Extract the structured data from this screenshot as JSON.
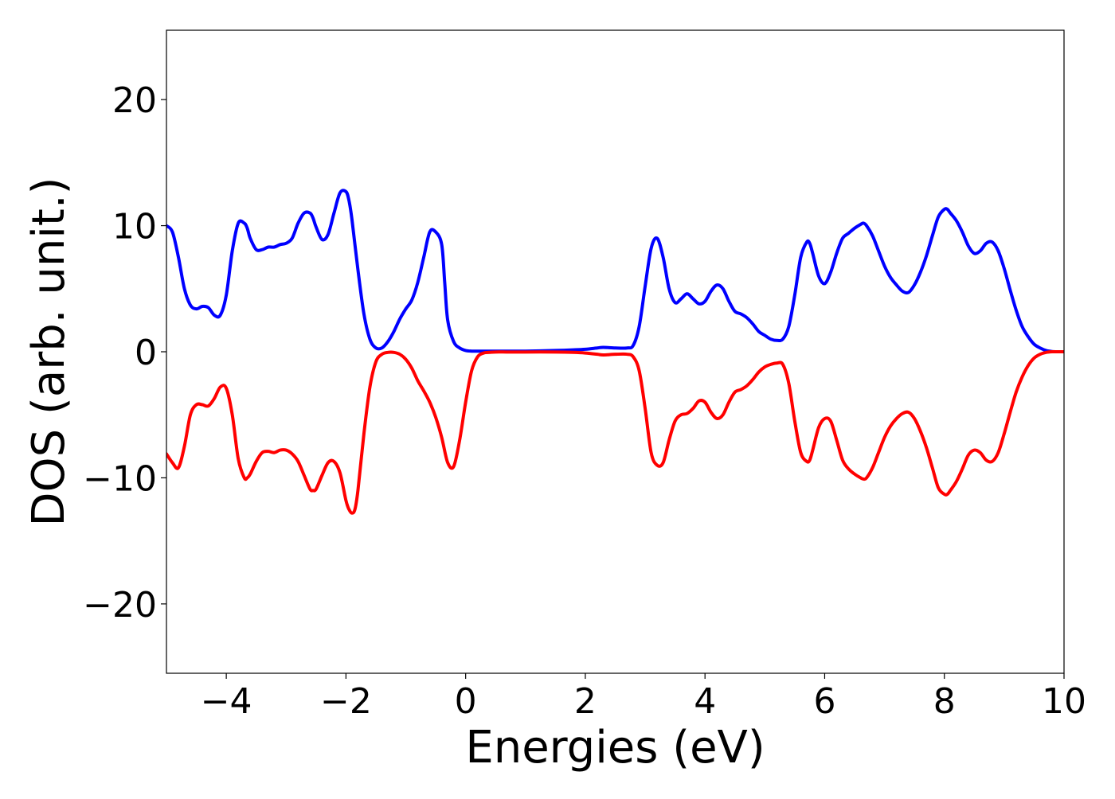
{
  "chart_data": {
    "type": "line",
    "title": "",
    "xlabel": "Energies (eV)",
    "ylabel": "DOS (arb. unit.)",
    "xlim": [
      -5,
      10
    ],
    "ylim": [
      -25.5,
      25.5
    ],
    "grid": false,
    "legend": "none",
    "x_ticks": [
      {
        "value": -4,
        "label": "−4"
      },
      {
        "value": -2,
        "label": "−2"
      },
      {
        "value": 0,
        "label": "0"
      },
      {
        "value": 2,
        "label": "2"
      },
      {
        "value": 4,
        "label": "4"
      },
      {
        "value": 6,
        "label": "6"
      },
      {
        "value": 8,
        "label": "8"
      },
      {
        "value": 10,
        "label": "10"
      }
    ],
    "y_ticks": [
      {
        "value": 20,
        "label": "20"
      },
      {
        "value": 10,
        "label": "10"
      },
      {
        "value": 0,
        "label": "0"
      },
      {
        "value": -10,
        "label": "−10"
      },
      {
        "value": -20,
        "label": "−20"
      }
    ],
    "series": [
      {
        "color": "#0000ff",
        "x": [
          -5.0,
          -4.9,
          -4.8,
          -4.7,
          -4.6,
          -4.5,
          -4.4,
          -4.3,
          -4.2,
          -4.1,
          -4.0,
          -3.9,
          -3.8,
          -3.7,
          -3.65,
          -3.6,
          -3.5,
          -3.4,
          -3.3,
          -3.2,
          -3.1,
          -3.0,
          -2.9,
          -2.8,
          -2.7,
          -2.6,
          -2.55,
          -2.5,
          -2.4,
          -2.3,
          -2.2,
          -2.1,
          -2.0,
          -1.95,
          -1.9,
          -1.8,
          -1.7,
          -1.6,
          -1.5,
          -1.4,
          -1.3,
          -1.2,
          -1.1,
          -1.0,
          -0.9,
          -0.8,
          -0.7,
          -0.6,
          -0.5,
          -0.4,
          -0.35,
          -0.3,
          -0.2,
          -0.1,
          0.0,
          0.1,
          0.2,
          0.3,
          0.4,
          0.5,
          0.7,
          1.0,
          1.5,
          1.8,
          2.0,
          2.2,
          2.3,
          2.5,
          2.7,
          2.8,
          2.9,
          3.0,
          3.1,
          3.2,
          3.3,
          3.4,
          3.5,
          3.6,
          3.7,
          3.8,
          3.9,
          4.0,
          4.1,
          4.2,
          4.3,
          4.4,
          4.5,
          4.6,
          4.7,
          4.8,
          4.9,
          5.0,
          5.1,
          5.2,
          5.3,
          5.4,
          5.5,
          5.6,
          5.7,
          5.75,
          5.8,
          5.9,
          6.0,
          6.1,
          6.2,
          6.3,
          6.4,
          6.5,
          6.6,
          6.65,
          6.7,
          6.8,
          6.9,
          7.0,
          7.1,
          7.2,
          7.3,
          7.4,
          7.5,
          7.6,
          7.7,
          7.8,
          7.9,
          8.0,
          8.05,
          8.1,
          8.2,
          8.3,
          8.4,
          8.5,
          8.6,
          8.7,
          8.8,
          8.9,
          9.0,
          9.1,
          9.2,
          9.3,
          9.4,
          9.5,
          9.6,
          9.7,
          9.8,
          9.9,
          10.0
        ],
        "y": [
          10.0,
          9.5,
          7.5,
          5.0,
          3.7,
          3.4,
          3.6,
          3.5,
          2.9,
          2.9,
          4.5,
          8.0,
          10.2,
          10.2,
          9.8,
          9.0,
          8.1,
          8.1,
          8.3,
          8.3,
          8.5,
          8.6,
          9.0,
          10.2,
          11.0,
          11.0,
          10.6,
          9.9,
          8.9,
          9.3,
          11.0,
          12.6,
          12.7,
          12.0,
          10.5,
          6.5,
          3.0,
          1.0,
          0.3,
          0.3,
          0.8,
          1.6,
          2.6,
          3.4,
          4.1,
          5.5,
          7.5,
          9.5,
          9.5,
          8.5,
          5.5,
          2.5,
          0.8,
          0.3,
          0.1,
          0.05,
          0.05,
          0.05,
          0.05,
          0.05,
          0.05,
          0.05,
          0.1,
          0.15,
          0.2,
          0.3,
          0.35,
          0.3,
          0.3,
          0.5,
          2.0,
          5.2,
          8.2,
          9.0,
          7.5,
          5.0,
          3.9,
          4.2,
          4.6,
          4.2,
          3.8,
          4.0,
          4.8,
          5.3,
          5.0,
          4.0,
          3.2,
          3.0,
          2.7,
          2.2,
          1.6,
          1.3,
          1.0,
          0.9,
          1.0,
          2.0,
          4.5,
          7.5,
          8.7,
          8.6,
          7.8,
          6.0,
          5.4,
          6.3,
          7.8,
          9.0,
          9.4,
          9.8,
          10.1,
          10.2,
          10.0,
          9.2,
          8.0,
          6.8,
          5.9,
          5.3,
          4.8,
          4.7,
          5.3,
          6.3,
          7.6,
          9.2,
          10.7,
          11.3,
          11.3,
          11.0,
          10.4,
          9.5,
          8.4,
          7.8,
          8.0,
          8.6,
          8.7,
          8.0,
          6.6,
          4.9,
          3.3,
          2.0,
          1.2,
          0.6,
          0.3,
          0.1,
          0.02,
          0.0,
          0.0
        ]
      },
      {
        "color": "#ff0000",
        "x": [
          -5.0,
          -4.9,
          -4.8,
          -4.7,
          -4.6,
          -4.5,
          -4.4,
          -4.3,
          -4.2,
          -4.1,
          -4.0,
          -3.9,
          -3.8,
          -3.7,
          -3.65,
          -3.6,
          -3.5,
          -3.4,
          -3.3,
          -3.2,
          -3.1,
          -3.0,
          -2.9,
          -2.8,
          -2.7,
          -2.6,
          -2.55,
          -2.5,
          -2.4,
          -2.3,
          -2.2,
          -2.1,
          -2.0,
          -1.95,
          -1.9,
          -1.85,
          -1.8,
          -1.7,
          -1.6,
          -1.5,
          -1.4,
          -1.3,
          -1.2,
          -1.1,
          -1.0,
          -0.9,
          -0.8,
          -0.7,
          -0.6,
          -0.5,
          -0.4,
          -0.3,
          -0.2,
          -0.1,
          0.0,
          0.1,
          0.2,
          0.3,
          0.4,
          0.5,
          0.7,
          1.0,
          1.5,
          1.8,
          2.0,
          2.2,
          2.3,
          2.5,
          2.7,
          2.8,
          2.9,
          3.0,
          3.1,
          3.2,
          3.3,
          3.4,
          3.5,
          3.6,
          3.7,
          3.8,
          3.9,
          4.0,
          4.1,
          4.2,
          4.3,
          4.4,
          4.5,
          4.6,
          4.7,
          4.8,
          4.9,
          5.0,
          5.1,
          5.2,
          5.3,
          5.4,
          5.5,
          5.6,
          5.7,
          5.75,
          5.8,
          5.9,
          6.0,
          6.1,
          6.2,
          6.3,
          6.4,
          6.5,
          6.6,
          6.65,
          6.7,
          6.8,
          6.9,
          7.0,
          7.1,
          7.2,
          7.3,
          7.4,
          7.5,
          7.6,
          7.7,
          7.8,
          7.9,
          8.0,
          8.05,
          8.1,
          8.2,
          8.3,
          8.4,
          8.5,
          8.6,
          8.7,
          8.8,
          8.9,
          9.0,
          9.1,
          9.2,
          9.3,
          9.4,
          9.5,
          9.6,
          9.7,
          9.8,
          9.9,
          10.0
        ],
        "y": [
          -8.1,
          -8.8,
          -9.2,
          -7.5,
          -5.0,
          -4.2,
          -4.2,
          -4.3,
          -3.7,
          -2.8,
          -2.9,
          -5.0,
          -8.5,
          -10.0,
          -10.0,
          -9.7,
          -8.7,
          -8.0,
          -7.9,
          -8.0,
          -7.8,
          -7.8,
          -8.1,
          -8.7,
          -9.8,
          -10.9,
          -11.0,
          -10.9,
          -9.8,
          -8.8,
          -8.7,
          -9.6,
          -11.8,
          -12.5,
          -12.8,
          -12.5,
          -11.0,
          -6.5,
          -2.8,
          -0.8,
          -0.2,
          -0.05,
          -0.05,
          -0.2,
          -0.6,
          -1.3,
          -2.3,
          -3.1,
          -4.0,
          -5.2,
          -6.8,
          -8.8,
          -9.1,
          -7.0,
          -4.0,
          -1.5,
          -0.4,
          -0.1,
          -0.05,
          -0.02,
          -0.02,
          -0.02,
          -0.02,
          -0.05,
          -0.1,
          -0.2,
          -0.25,
          -0.2,
          -0.2,
          -0.4,
          -1.5,
          -4.5,
          -8.0,
          -9.0,
          -8.8,
          -7.0,
          -5.5,
          -5.0,
          -4.9,
          -4.5,
          -3.9,
          -4.0,
          -4.8,
          -5.3,
          -5.0,
          -4.0,
          -3.2,
          -3.0,
          -2.7,
          -2.2,
          -1.6,
          -1.2,
          -1.0,
          -0.9,
          -1.0,
          -2.5,
          -5.5,
          -8.0,
          -8.7,
          -8.6,
          -7.8,
          -6.0,
          -5.3,
          -5.5,
          -7.0,
          -8.6,
          -9.3,
          -9.7,
          -10.0,
          -10.1,
          -10.0,
          -9.2,
          -8.0,
          -6.8,
          -5.9,
          -5.3,
          -4.9,
          -4.8,
          -5.3,
          -6.3,
          -7.6,
          -9.2,
          -10.8,
          -11.3,
          -11.3,
          -11.0,
          -10.3,
          -9.3,
          -8.2,
          -7.8,
          -8.0,
          -8.6,
          -8.7,
          -8.0,
          -6.5,
          -4.8,
          -3.2,
          -2.0,
          -1.1,
          -0.5,
          -0.2,
          -0.05,
          0.0,
          0.0,
          0.0
        ]
      }
    ]
  }
}
